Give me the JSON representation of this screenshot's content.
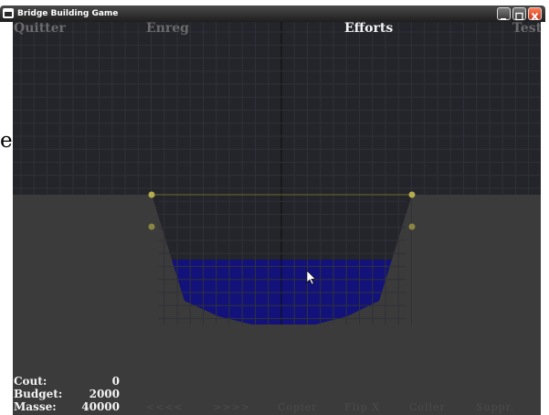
{
  "window": {
    "title": "Bridge Building Game",
    "controls": [
      "minimize-icon",
      "maximize-icon",
      "close-icon"
    ]
  },
  "menu": {
    "quit": "Quitter",
    "save": "Enreg",
    "forces": "Efforts",
    "test": "Test"
  },
  "stats": [
    {
      "label": "Cout:",
      "value": "0"
    },
    {
      "label": "Budget:",
      "value": "2000"
    },
    {
      "label": "Masse:",
      "value": "40000"
    }
  ],
  "toolbar": [
    "<<<<",
    ">>>>",
    "Copier",
    "Flip X",
    "Coller",
    "Suppr."
  ],
  "stray_char": "e",
  "colors": {
    "sky": "#24252a",
    "ground": "#3b3b3b",
    "water": "#12127a",
    "anchor": "#b5ab4f",
    "active_menu": "#f2f2f2",
    "inactive_menu": "#6b6b6b"
  },
  "icons": {
    "cursor": "arrow-cursor-icon",
    "app": "app-icon"
  }
}
